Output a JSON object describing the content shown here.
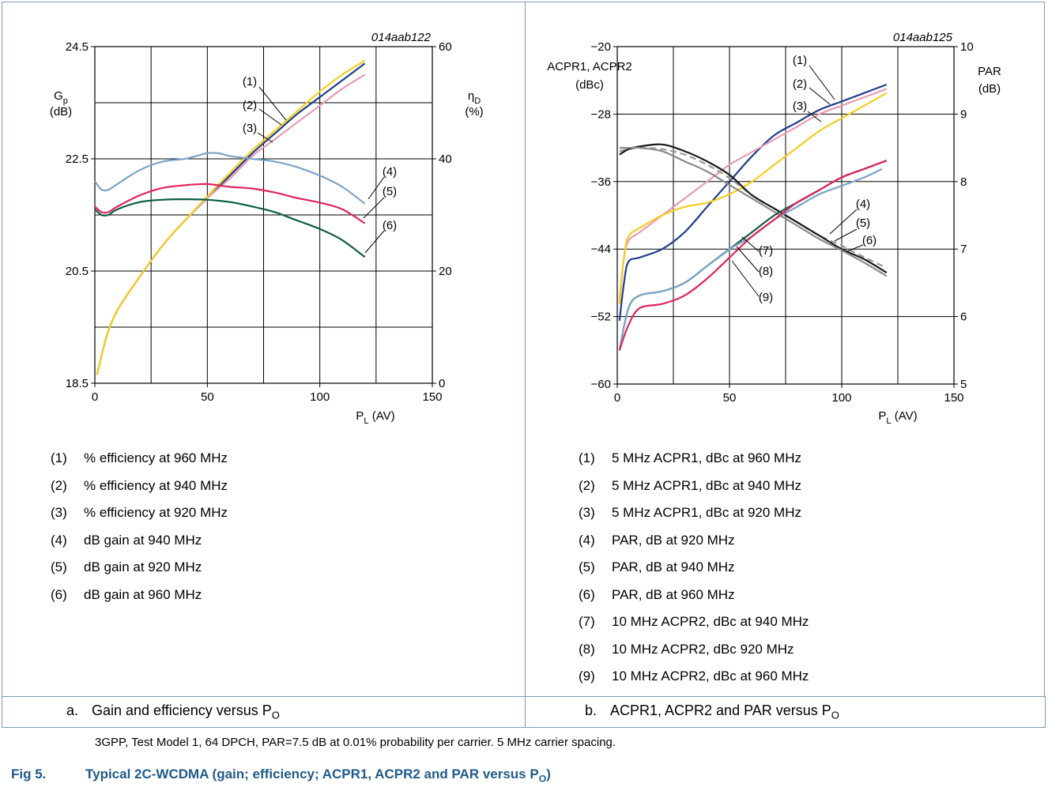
{
  "chart_data": [
    {
      "type": "line",
      "id_label": "014aab122",
      "xlabel": "P",
      "xlabel_sub": "L",
      "xlabel_tail": " (AV)",
      "xlim": [
        0,
        150
      ],
      "xticks": [
        0,
        50,
        100,
        150
      ],
      "y_left": {
        "label": "G",
        "label_sub": "p",
        "unit": "(dB)",
        "lim": [
          18.5,
          24.5
        ],
        "ticks": [
          18.5,
          20.5,
          22.5,
          24.5
        ]
      },
      "y_right": {
        "label": "η",
        "label_sub": "D",
        "unit": "(%)",
        "lim": [
          0,
          60
        ],
        "ticks": [
          0,
          20,
          40,
          60
        ]
      },
      "grid": true,
      "series": [
        {
          "name": "(1)",
          "axis": "right",
          "color": "#1f3d8c",
          "x": [
            1,
            5,
            10,
            20,
            30,
            40,
            50,
            60,
            70,
            80,
            90,
            100,
            110,
            120
          ],
          "y": [
            1.5,
            8,
            13,
            19,
            24.5,
            29,
            33,
            37,
            41,
            44.5,
            48,
            51,
            54,
            57
          ]
        },
        {
          "name": "(2)",
          "axis": "right",
          "color": "#e89ab4",
          "x": [
            1,
            5,
            10,
            20,
            30,
            40,
            50,
            60,
            70,
            80,
            90,
            100,
            110,
            120
          ],
          "y": [
            1.5,
            8,
            13,
            19,
            24.5,
            29,
            33,
            36.5,
            40.5,
            43.5,
            46.5,
            49.5,
            52.5,
            55
          ]
        },
        {
          "name": "(3)",
          "axis": "right",
          "color": "#f6cd1e",
          "x": [
            1,
            5,
            10,
            20,
            30,
            40,
            50,
            60,
            70,
            80,
            90,
            100,
            110,
            120
          ],
          "y": [
            1.5,
            8,
            13,
            19,
            24.5,
            29,
            33.3,
            37.5,
            41.5,
            45,
            48.5,
            52,
            55,
            57.5
          ]
        },
        {
          "name": "(4)",
          "axis": "left",
          "color": "#7aa4c8",
          "x": [
            0,
            3,
            6,
            10,
            20,
            30,
            40,
            45,
            50,
            55,
            60,
            70,
            80,
            90,
            100,
            110,
            120
          ],
          "y": [
            22.1,
            21.95,
            21.95,
            22.05,
            22.3,
            22.45,
            22.5,
            22.55,
            22.6,
            22.6,
            22.55,
            22.5,
            22.45,
            22.35,
            22.2,
            22.0,
            21.7
          ]
        },
        {
          "name": "(5)",
          "axis": "left",
          "color": "#e0245a",
          "x": [
            0,
            3,
            6,
            10,
            20,
            30,
            40,
            50,
            60,
            70,
            80,
            90,
            100,
            110,
            120
          ],
          "y": [
            21.65,
            21.55,
            21.55,
            21.65,
            21.85,
            21.98,
            22.03,
            22.05,
            22.0,
            21.97,
            21.9,
            21.8,
            21.72,
            21.6,
            21.35
          ]
        },
        {
          "name": "(6)",
          "axis": "left",
          "color": "#0d5c43",
          "x": [
            0,
            3,
            6,
            10,
            20,
            30,
            40,
            50,
            60,
            70,
            80,
            90,
            100,
            110,
            120
          ],
          "y": [
            21.6,
            21.5,
            21.5,
            21.6,
            21.73,
            21.77,
            21.78,
            21.77,
            21.73,
            21.65,
            21.55,
            21.4,
            21.25,
            21.05,
            20.75
          ]
        }
      ]
    },
    {
      "type": "line",
      "id_label": "014aab125",
      "xlabel": "P",
      "xlabel_sub": "L",
      "xlabel_tail": " (AV)",
      "xlim": [
        0,
        150
      ],
      "xticks": [
        0,
        50,
        100,
        150
      ],
      "y_left": {
        "label": "ACPR1, ACPR2",
        "unit": "(dBc)",
        "lim": [
          -60,
          -20
        ],
        "ticks": [
          -60,
          -52,
          -44,
          -36,
          -28,
          -20
        ]
      },
      "y_right": {
        "label": "PAR",
        "unit": "(dB)",
        "lim": [
          5,
          10
        ],
        "ticks": [
          5,
          6,
          7,
          8,
          9,
          10
        ]
      },
      "grid": true,
      "series": [
        {
          "name": "(1)",
          "axis": "left",
          "color": "#1f3d8c",
          "x": [
            1,
            3,
            5,
            10,
            20,
            30,
            40,
            50,
            60,
            70,
            80,
            90,
            100,
            110,
            120
          ],
          "y": [
            -52.5,
            -48,
            -45.5,
            -45,
            -44,
            -42,
            -39,
            -36,
            -33,
            -30.5,
            -29,
            -27.5,
            -26.5,
            -25.5,
            -24.5
          ]
        },
        {
          "name": "(2)",
          "axis": "left",
          "color": "#e89ab4",
          "x": [
            1,
            3,
            5,
            10,
            20,
            30,
            40,
            50,
            60,
            70,
            80,
            90,
            100,
            110,
            120
          ],
          "y": [
            -50,
            -45,
            -43,
            -42,
            -40,
            -38,
            -36,
            -34,
            -32.5,
            -31,
            -29.5,
            -28,
            -27,
            -26,
            -25
          ]
        },
        {
          "name": "(3)",
          "axis": "left",
          "color": "#f6cd1e",
          "x": [
            1,
            3,
            5,
            10,
            20,
            30,
            40,
            50,
            60,
            70,
            80,
            90,
            100,
            110,
            120
          ],
          "y": [
            -50.5,
            -45,
            -42.5,
            -41.5,
            -40,
            -39,
            -38.5,
            -37.5,
            -36,
            -34,
            -32,
            -30,
            -28.5,
            -27,
            -25.5
          ]
        },
        {
          "name": "(4)",
          "axis": "right",
          "color": "#9a9a9a",
          "dash": "8,5",
          "x": [
            1,
            5,
            10,
            20,
            30,
            40,
            50,
            60,
            70,
            80,
            90,
            100,
            110,
            120
          ],
          "y": [
            8.45,
            8.48,
            8.5,
            8.48,
            8.4,
            8.25,
            8.05,
            7.8,
            7.6,
            7.4,
            7.2,
            7.05,
            6.88,
            6.72
          ]
        },
        {
          "name": "(5)",
          "axis": "right",
          "color": "#1a1a1a",
          "x": [
            1,
            5,
            10,
            20,
            30,
            40,
            50,
            60,
            70,
            80,
            90,
            100,
            110,
            120
          ],
          "y": [
            8.4,
            8.48,
            8.52,
            8.55,
            8.45,
            8.3,
            8.1,
            7.8,
            7.6,
            7.4,
            7.2,
            7.0,
            6.85,
            6.65
          ]
        },
        {
          "name": "(6)",
          "axis": "right",
          "color": "#8a8a8a",
          "x": [
            1,
            5,
            10,
            20,
            30,
            40,
            50,
            60,
            70,
            80,
            90,
            100,
            110,
            120
          ],
          "y": [
            8.5,
            8.5,
            8.5,
            8.45,
            8.3,
            8.15,
            7.95,
            7.75,
            7.55,
            7.35,
            7.15,
            6.98,
            6.8,
            6.6
          ]
        },
        {
          "name": "(7)",
          "axis": "left",
          "color": "#0d5c43",
          "x": [
            1,
            5,
            10,
            20,
            30,
            40,
            50,
            60,
            70,
            80,
            90,
            100,
            110,
            120
          ],
          "y": [
            -56,
            -51,
            -49.5,
            -49,
            -48,
            -46,
            -44,
            -42,
            -40,
            -38.5,
            -37,
            -35.5,
            -34.5,
            -33.5
          ]
        },
        {
          "name": "(8)",
          "axis": "left",
          "color": "#7aa4c8",
          "x": [
            1,
            5,
            10,
            20,
            30,
            40,
            50,
            60,
            70,
            80,
            90,
            100,
            110,
            118
          ],
          "y": [
            -56,
            -51,
            -49.5,
            -49,
            -48,
            -46,
            -44,
            -42.5,
            -40.5,
            -39,
            -37.5,
            -36.5,
            -35.5,
            -34.5
          ]
        },
        {
          "name": "(9)",
          "axis": "left",
          "color": "#e0245a",
          "x": [
            1,
            5,
            10,
            20,
            30,
            40,
            50,
            60,
            70,
            80,
            90,
            100,
            110,
            120
          ],
          "y": [
            -56,
            -53,
            -51,
            -50.5,
            -49.5,
            -47.5,
            -45,
            -42.5,
            -40.5,
            -38.5,
            -37,
            -35.5,
            -34.5,
            -33.5
          ]
        }
      ]
    }
  ],
  "legend_a": [
    {
      "num": "(1)",
      "text": "% efficiency at 960 MHz"
    },
    {
      "num": "(2)",
      "text": "% efficiency at 940 MHz"
    },
    {
      "num": "(3)",
      "text": "% efficiency at 920 MHz"
    },
    {
      "num": "(4)",
      "text": "dB gain at 940 MHz"
    },
    {
      "num": "(5)",
      "text": "dB gain at 920 MHz"
    },
    {
      "num": "(6)",
      "text": "dB gain at 960 MHz"
    }
  ],
  "legend_b": [
    {
      "num": "(1)",
      "text": "5 MHz ACPR1, dBc at 960 MHz"
    },
    {
      "num": "(2)",
      "text": "5 MHz ACPR1, dBc at 940 MHz"
    },
    {
      "num": "(3)",
      "text": "5 MHz ACPR1, dBc at 920 MHz"
    },
    {
      "num": "(4)",
      "text": "PAR, dB at 920 MHz"
    },
    {
      "num": "(5)",
      "text": "PAR, dB at 940 MHz"
    },
    {
      "num": "(6)",
      "text": "PAR, dB at 960 MHz"
    },
    {
      "num": "(7)",
      "text": "10 MHz ACPR2, dBc at 940 MHz"
    },
    {
      "num": "(8)",
      "text": "10 MHz ACPR2, dBc 920 MHz"
    },
    {
      "num": "(9)",
      "text": "10 MHz ACPR2, dBc at 960 MHz"
    }
  ],
  "caption_a": {
    "label": "a.",
    "text": "Gain and efficiency versus P",
    "sub": "O"
  },
  "caption_b": {
    "label": "b.",
    "text": "ACPR1, ACPR2 and PAR versus P",
    "sub": "O"
  },
  "note": "3GPP, Test Model 1, 64 DPCH, PAR=7.5 dB at 0.01% probability per carrier. 5 MHz carrier spacing.",
  "figure": {
    "num": "Fig 5.",
    "text": "Typical 2C-WCDMA (gain; efficiency; ACPR1, ACPR2 and PAR versus P",
    "sub": "O",
    "tail": ")"
  }
}
